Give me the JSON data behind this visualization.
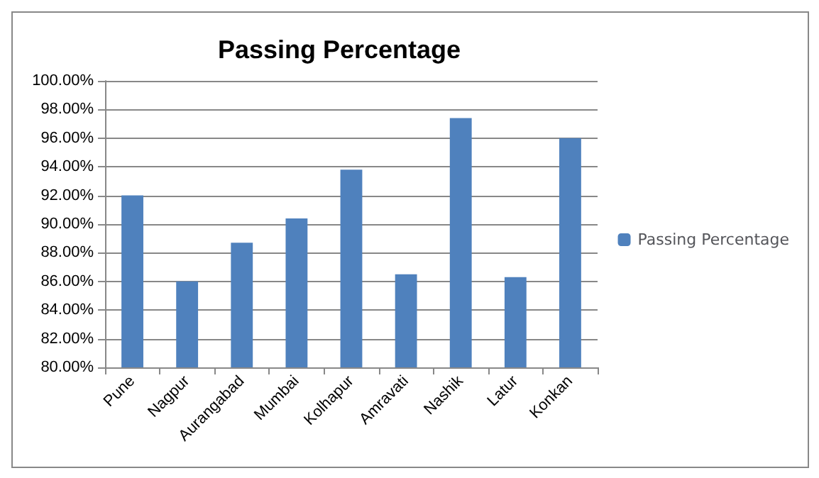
{
  "chart_data": {
    "type": "bar",
    "title": "Passing Percentage",
    "categories": [
      "Pune",
      "Nagpur",
      "Aurangabad",
      "Mumbai",
      "Kolhapur",
      "Amravati",
      "Nashik",
      "Latur",
      "Konkan"
    ],
    "series": [
      {
        "name": "Passing Percentage",
        "color": "#4f81bd",
        "values": [
          92.0,
          86.0,
          88.7,
          90.4,
          93.8,
          86.5,
          97.4,
          86.3,
          96.0
        ]
      }
    ],
    "ylim": [
      80,
      100
    ],
    "yticks": [
      {
        "value": 80,
        "label": "80.00%"
      },
      {
        "value": 82,
        "label": "82.00%"
      },
      {
        "value": 84,
        "label": "84.00%"
      },
      {
        "value": 86,
        "label": "86.00%"
      },
      {
        "value": 88,
        "label": "88.00%"
      },
      {
        "value": 90,
        "label": "90.00%"
      },
      {
        "value": 92,
        "label": "92.00%"
      },
      {
        "value": 94,
        "label": "94.00%"
      },
      {
        "value": 96,
        "label": "96.00%"
      },
      {
        "value": 98,
        "label": "98.00%"
      },
      {
        "value": 100,
        "label": "100.00%"
      }
    ],
    "grid": "y",
    "legend": "right"
  }
}
